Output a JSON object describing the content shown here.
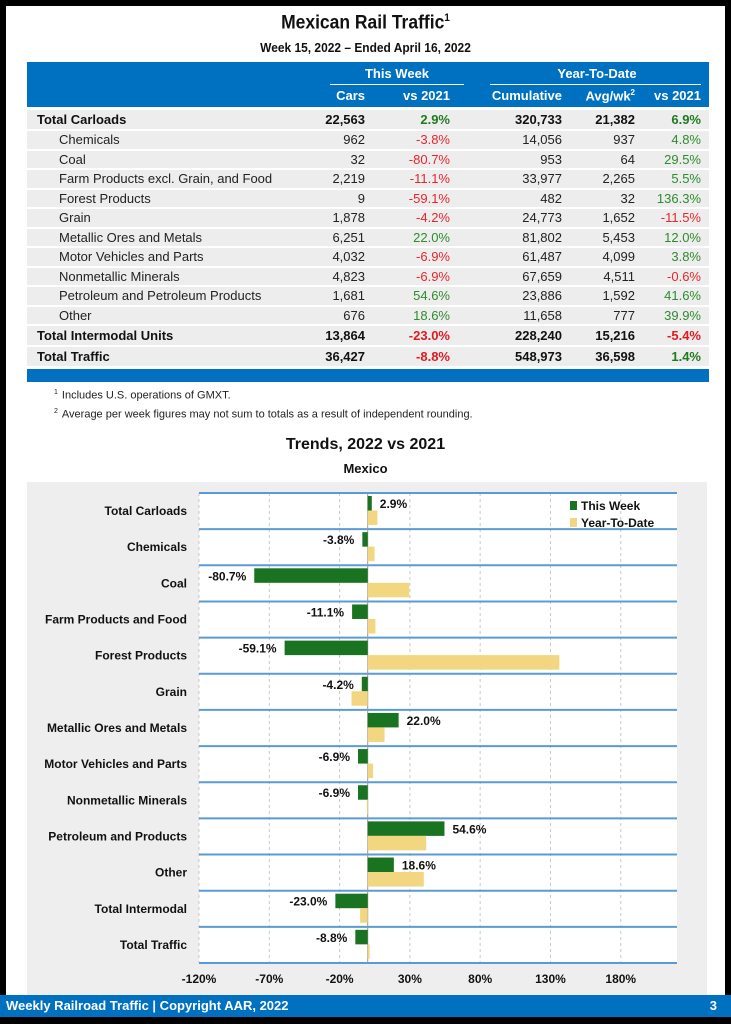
{
  "header": {
    "title": "Mexican Rail Traffic",
    "title_sup": "1",
    "subtitle": "Week 15, 2022 – Ended April 16, 2022"
  },
  "table": {
    "group_this_week": "This Week",
    "group_ytd": "Year-To-Date",
    "columns": [
      "Cars",
      "vs 2021",
      "Cumulative",
      "Avg/wk",
      "vs 2021"
    ],
    "avg_sup": "2",
    "rows": [
      {
        "label": "Total Carloads",
        "type": "total",
        "cars": "22,563",
        "vs": "2.9%",
        "vs_sign": "pos",
        "cum": "320,733",
        "avg": "21,382",
        "ytd_vs": "6.9%",
        "ytd_sign": "pos"
      },
      {
        "label": "Chemicals",
        "type": "sub",
        "cars": "962",
        "vs": "-3.8%",
        "vs_sign": "neg",
        "cum": "14,056",
        "avg": "937",
        "ytd_vs": "4.8%",
        "ytd_sign": "pos"
      },
      {
        "label": "Coal",
        "type": "sub",
        "cars": "32",
        "vs": "-80.7%",
        "vs_sign": "neg",
        "cum": "953",
        "avg": "64",
        "ytd_vs": "29.5%",
        "ytd_sign": "pos"
      },
      {
        "label": "Farm Products excl. Grain, and Food",
        "type": "sub",
        "cars": "2,219",
        "vs": "-11.1%",
        "vs_sign": "neg",
        "cum": "33,977",
        "avg": "2,265",
        "ytd_vs": "5.5%",
        "ytd_sign": "pos"
      },
      {
        "label": "Forest Products",
        "type": "sub",
        "cars": "9",
        "vs": "-59.1%",
        "vs_sign": "neg",
        "cum": "482",
        "avg": "32",
        "ytd_vs": "136.3%",
        "ytd_sign": "pos"
      },
      {
        "label": "Grain",
        "type": "sub",
        "cars": "1,878",
        "vs": "-4.2%",
        "vs_sign": "neg",
        "cum": "24,773",
        "avg": "1,652",
        "ytd_vs": "-11.5%",
        "ytd_sign": "neg"
      },
      {
        "label": "Metallic Ores and Metals",
        "type": "sub",
        "cars": "6,251",
        "vs": "22.0%",
        "vs_sign": "pos",
        "cum": "81,802",
        "avg": "5,453",
        "ytd_vs": "12.0%",
        "ytd_sign": "pos"
      },
      {
        "label": "Motor Vehicles and Parts",
        "type": "sub",
        "cars": "4,032",
        "vs": "-6.9%",
        "vs_sign": "neg",
        "cum": "61,487",
        "avg": "4,099",
        "ytd_vs": "3.8%",
        "ytd_sign": "pos"
      },
      {
        "label": "Nonmetallic Minerals",
        "type": "sub",
        "cars": "4,823",
        "vs": "-6.9%",
        "vs_sign": "neg",
        "cum": "67,659",
        "avg": "4,511",
        "ytd_vs": "-0.6%",
        "ytd_sign": "neg"
      },
      {
        "label": "Petroleum and Petroleum Products",
        "type": "sub",
        "cars": "1,681",
        "vs": "54.6%",
        "vs_sign": "pos",
        "cum": "23,886",
        "avg": "1,592",
        "ytd_vs": "41.6%",
        "ytd_sign": "pos"
      },
      {
        "label": "Other",
        "type": "sub",
        "cars": "676",
        "vs": "18.6%",
        "vs_sign": "pos",
        "cum": "11,658",
        "avg": "777",
        "ytd_vs": "39.9%",
        "ytd_sign": "pos"
      },
      {
        "label": "Total Intermodal Units",
        "type": "total",
        "cars": "13,864",
        "vs": "-23.0%",
        "vs_sign": "neg",
        "cum": "228,240",
        "avg": "15,216",
        "ytd_vs": "-5.4%",
        "ytd_sign": "neg"
      },
      {
        "label": "Total Traffic",
        "type": "total",
        "cars": "36,427",
        "vs": "-8.8%",
        "vs_sign": "neg",
        "cum": "548,973",
        "avg": "36,598",
        "ytd_vs": "1.4%",
        "ytd_sign": "pos"
      }
    ]
  },
  "footnotes": [
    {
      "num": "1",
      "text": "Includes U.S. operations of GMXT."
    },
    {
      "num": "2",
      "text": "Average per week figures may not sum to totals as a result of independent rounding."
    }
  ],
  "chart_data": {
    "type": "bar",
    "orientation": "horizontal",
    "title": "Trends, 2022 vs 2021",
    "subtitle": "Mexico",
    "categories": [
      "Total Carloads",
      "Chemicals",
      "Coal",
      "Farm Products and Food",
      "Forest Products",
      "Grain",
      "Metallic Ores and Metals",
      "Motor Vehicles and Parts",
      "Nonmetallic Minerals",
      "Petroleum and Products",
      "Other",
      "Total Intermodal",
      "Total Traffic"
    ],
    "series": [
      {
        "name": "This Week",
        "color": "#1a7320",
        "values": [
          2.9,
          -3.8,
          -80.7,
          -11.1,
          -59.1,
          -4.2,
          22.0,
          -6.9,
          -6.9,
          54.6,
          18.6,
          -23.0,
          -8.8
        ]
      },
      {
        "name": "Year-To-Date",
        "color": "#f2d680",
        "values": [
          6.9,
          4.8,
          29.5,
          5.5,
          136.3,
          -11.5,
          12.0,
          3.8,
          -0.6,
          41.6,
          39.9,
          -5.4,
          1.4
        ]
      }
    ],
    "data_labels": [
      "2.9%",
      "-3.8%",
      "-80.7%",
      "-11.1%",
      "-59.1%",
      "-4.2%",
      "22.0%",
      "-6.9%",
      "-6.9%",
      "54.6%",
      "18.6%",
      "-23.0%",
      "-8.8%"
    ],
    "xlim": [
      -120,
      220
    ],
    "xticks": [
      -120,
      -70,
      -20,
      30,
      80,
      130,
      180
    ],
    "xtick_labels": [
      "-120%",
      "-70%",
      "-20%",
      "30%",
      "80%",
      "130%",
      "180%"
    ],
    "xlabel": "",
    "ylabel": "",
    "grid": true,
    "legend": "top-right"
  },
  "footer": {
    "text": "Weekly Railroad Traffic | Copyright AAR, 2022",
    "page": "3"
  }
}
